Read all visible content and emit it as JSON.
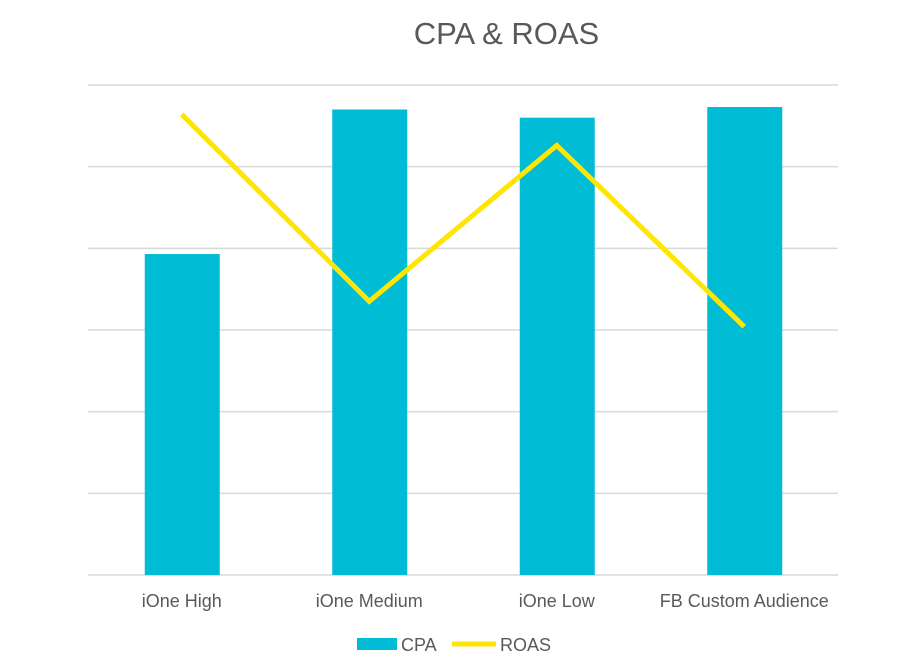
{
  "chart_data": {
    "type": "bar+line",
    "title": "CPA & ROAS",
    "categories": [
      "iOne High",
      "iOne Medium",
      "iOne Low",
      "FB Custom Audience"
    ],
    "series": [
      {
        "name": "CPA",
        "type": "bar",
        "color": "#00BCD4",
        "values": [
          3.93,
          5.7,
          5.6,
          5.73
        ]
      },
      {
        "name": "ROAS",
        "type": "line",
        "color": "#FFE600",
        "values": [
          5.64,
          3.35,
          5.26,
          3.04
        ]
      }
    ],
    "ylim": [
      0,
      6
    ],
    "y_tick_labels_visible": false,
    "grid": true,
    "legend": "bottom",
    "xlabel": "",
    "ylabel": ""
  }
}
